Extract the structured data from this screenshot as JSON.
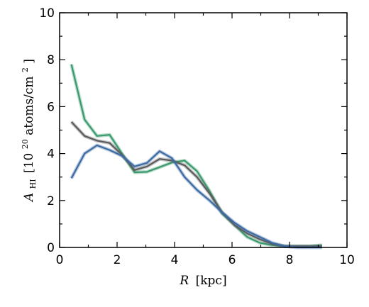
{
  "chart_data": {
    "type": "line",
    "xlabel": {
      "var": "R",
      "unit": "[kpc]"
    },
    "ylabel": {
      "var": "A",
      "sub": "HI",
      "unit_prefix": "[10",
      "exp": "20",
      "unit_mid": " atoms/cm",
      "exp2": "2",
      "unit_suffix": " ]"
    },
    "xlim": [
      0,
      10
    ],
    "ylim": [
      0,
      10
    ],
    "xticks": [
      "0",
      "2",
      "4",
      "6",
      "8",
      "10"
    ],
    "yticks": [
      "0",
      "2",
      "4",
      "6",
      "8",
      "10"
    ],
    "grid": false,
    "legend": "none",
    "series": [
      {
        "color": "#3a9a6e",
        "x": [
          0.41,
          0.87,
          1.3,
          1.74,
          2.17,
          2.61,
          3.04,
          3.48,
          3.91,
          4.35,
          4.78,
          5.22,
          5.65,
          6.09,
          6.52,
          6.96,
          7.39,
          7.83,
          8.26,
          8.7,
          9.13
        ],
        "y": [
          7.8,
          5.45,
          4.75,
          4.8,
          4.0,
          3.2,
          3.22,
          3.42,
          3.62,
          3.7,
          3.25,
          2.4,
          1.45,
          0.95,
          0.45,
          0.2,
          0.1,
          0.05,
          0.05,
          0.05,
          0.1
        ]
      },
      {
        "color": "#5b5b5b",
        "x": [
          0.41,
          0.87,
          1.3,
          1.74,
          2.17,
          2.61,
          3.04,
          3.48,
          3.91,
          4.35,
          4.78,
          5.22,
          5.65,
          6.09,
          6.52,
          6.96,
          7.39,
          7.83,
          8.26,
          8.7,
          9.13
        ],
        "y": [
          5.35,
          4.75,
          4.55,
          4.45,
          3.95,
          3.3,
          3.45,
          3.77,
          3.7,
          3.5,
          3.0,
          2.3,
          1.5,
          0.95,
          0.6,
          0.35,
          0.15,
          0.05,
          0.05,
          0.05,
          0.05
        ]
      },
      {
        "color": "#3c6aa3",
        "x": [
          0.41,
          0.87,
          1.3,
          1.74,
          2.17,
          2.61,
          3.04,
          3.48,
          3.91,
          4.35,
          4.78,
          5.22,
          5.65,
          6.09,
          6.52,
          6.96,
          7.39,
          7.83,
          8.26,
          8.7,
          9.13
        ],
        "y": [
          2.95,
          4.0,
          4.35,
          4.15,
          3.9,
          3.45,
          3.6,
          4.1,
          3.8,
          3.0,
          2.45,
          2.0,
          1.5,
          1.05,
          0.7,
          0.45,
          0.2,
          0.05,
          0.0,
          0.0,
          0.0
        ]
      }
    ]
  }
}
